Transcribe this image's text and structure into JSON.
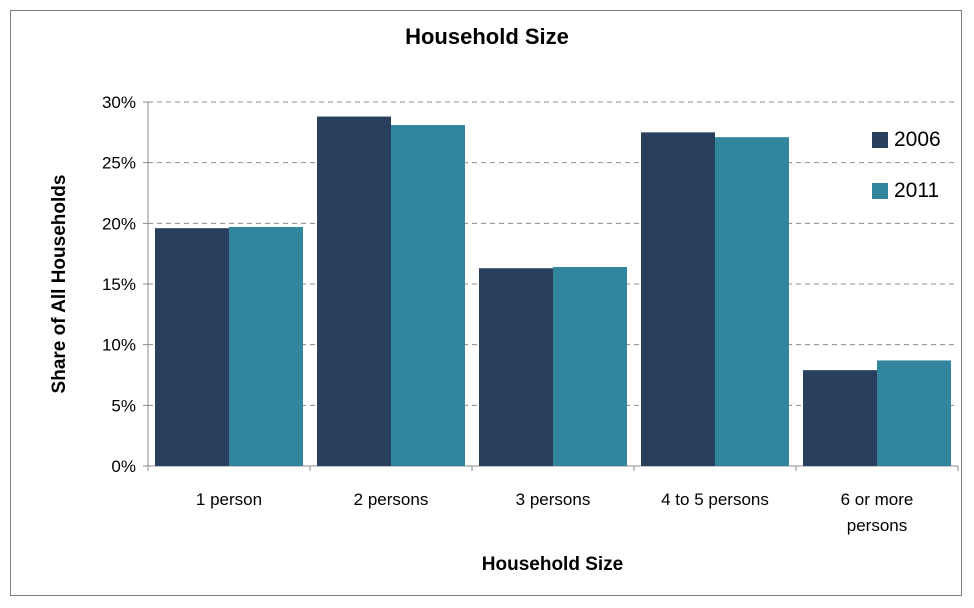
{
  "chart_data": {
    "type": "bar",
    "title": "Household Size",
    "xlabel": "Household Size",
    "ylabel": "Share of All Households",
    "categories": [
      "1 person",
      "2 persons",
      "3 persons",
      "4 to 5 persons",
      "6 or more persons"
    ],
    "series": [
      {
        "name": "2006",
        "values": [
          19.6,
          28.8,
          16.3,
          27.5,
          7.9
        ],
        "color": "#283f5e"
      },
      {
        "name": "2011",
        "values": [
          19.7,
          28.1,
          16.4,
          27.1,
          8.7
        ],
        "color": "#31859c"
      }
    ],
    "ylim": [
      0,
      30
    ],
    "yticks": [
      "0%",
      "5%",
      "10%",
      "15%",
      "20%",
      "25%",
      "30%"
    ],
    "grid": true,
    "legend_position": "top-right"
  }
}
